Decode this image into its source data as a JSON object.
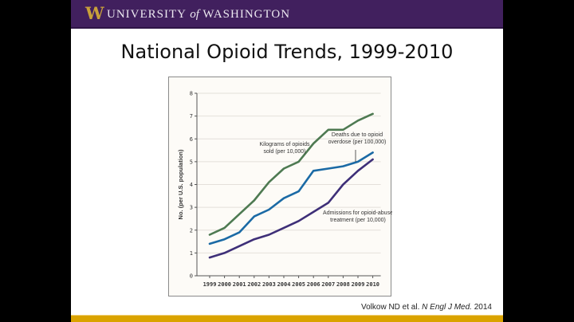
{
  "header": {
    "logo_letter": "W",
    "university_prefix": "UNIVERSITY",
    "university_of": "of",
    "university_suffix": "WASHINGTON",
    "colors": {
      "purple": "#41205e",
      "gold": "#c9a13a",
      "footer_gold": "#daa300"
    }
  },
  "slide": {
    "title": "National Opioid Trends, 1999-2010",
    "citation_authors": "Volkow ND et al.",
    "citation_journal": "N Engl J Med.",
    "citation_year": "2014"
  },
  "chart_data": {
    "type": "line",
    "title": "",
    "xlabel": "",
    "ylabel": "No. (per U.S. population)",
    "x": [
      "1999",
      "2000",
      "2001",
      "2002",
      "2003",
      "2004",
      "2005",
      "2006",
      "2007",
      "2008",
      "2009",
      "2010"
    ],
    "ylim": [
      0,
      8
    ],
    "yticks": [
      "0",
      "1",
      "2",
      "3",
      "4",
      "5",
      "6",
      "7",
      "8"
    ],
    "grid": true,
    "series": [
      {
        "name": "Kilograms of opioids sold (per 10,000)",
        "label_lines": [
          "Kilograms of opioids",
          "sold (per 10,000)"
        ],
        "color": "#4e7a52",
        "values": [
          1.8,
          2.1,
          2.7,
          3.3,
          4.1,
          4.7,
          5.0,
          5.8,
          6.4,
          6.4,
          6.8,
          7.1
        ]
      },
      {
        "name": "Deaths due to opioid overdose (per 100,000)",
        "label_lines": [
          "Deaths due to opioid",
          "overdose (per 100,000)"
        ],
        "color": "#1b6aa5",
        "values": [
          1.4,
          1.6,
          1.9,
          2.6,
          2.9,
          3.4,
          3.7,
          4.6,
          4.7,
          4.8,
          5.0,
          5.4
        ]
      },
      {
        "name": "Admissions for opioid-abuse treatment (per 10,000)",
        "label_lines": [
          "Admissions for opioid-abuse",
          "treatment (per 10,000)"
        ],
        "color": "#3e2f78",
        "values": [
          0.8,
          1.0,
          1.3,
          1.6,
          1.8,
          2.1,
          2.4,
          2.8,
          3.2,
          4.0,
          4.6,
          5.1
        ]
      }
    ]
  }
}
